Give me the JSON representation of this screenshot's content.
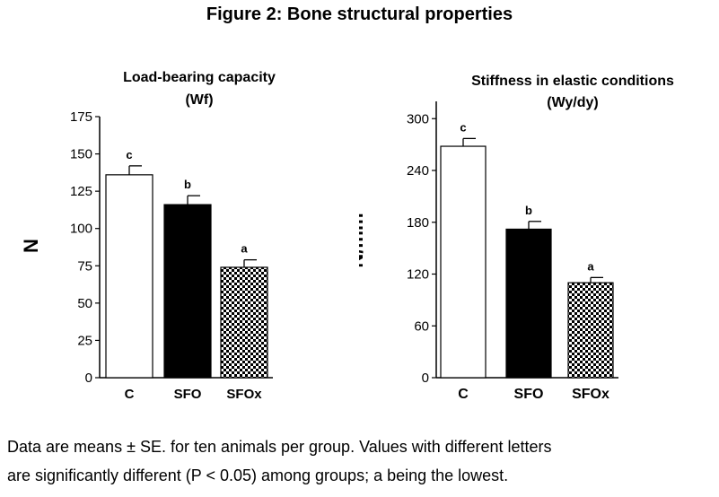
{
  "figure_title": "Figure 2: Bone structural properties",
  "caption_lines": [
    "Data are means ± SE. for ten animals per group. Values with different letters",
    "are significantly different (P < 0.05) among groups; a being the lowest."
  ],
  "colors": {
    "C": "#ffffff",
    "SFO": "#000000",
    "SFOx": "checkerboard",
    "axis": "#000000"
  },
  "chart_data": [
    {
      "type": "bar",
      "title": "Load-bearing capacity",
      "subtitle": "(Wf)",
      "ylabel": "N",
      "xlabel": "",
      "categories": [
        "C",
        "SFO",
        "SFOx"
      ],
      "values": [
        136,
        116,
        74
      ],
      "errors": [
        6,
        6,
        5
      ],
      "letters": [
        "c",
        "b",
        "a"
      ],
      "ylim": [
        0,
        175
      ],
      "yticks": [
        0,
        25,
        50,
        75,
        100,
        125,
        150,
        175
      ],
      "grid": false
    },
    {
      "type": "bar",
      "title": "Stiffness in elastic conditions",
      "subtitle": "(Wy/dy)",
      "ylabel": "N/mm",
      "xlabel": "",
      "categories": [
        "C",
        "SFO",
        "SFOx"
      ],
      "values": [
        268,
        172,
        110
      ],
      "errors": [
        9,
        9,
        6
      ],
      "letters": [
        "c",
        "b",
        "a"
      ],
      "ylim": [
        0,
        320
      ],
      "yticks": [
        0,
        60,
        120,
        180,
        240,
        300
      ],
      "grid": false
    }
  ]
}
